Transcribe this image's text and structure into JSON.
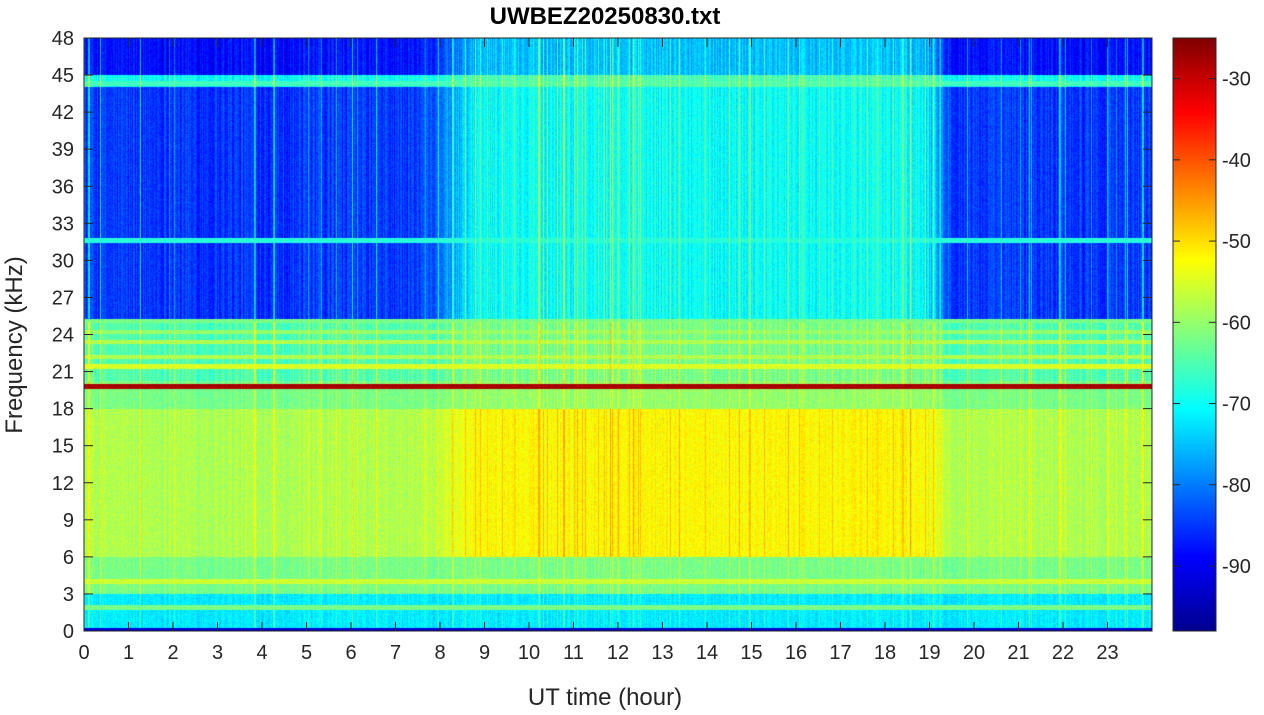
{
  "chart_data": {
    "type": "heatmap",
    "title": "UWBEZ20250830.txt",
    "xlabel": "UT time (hour)",
    "ylabel": "Frequency (kHz)",
    "xlim": [
      0,
      24
    ],
    "ylim": [
      0,
      48
    ],
    "x_ticks": [
      0,
      1,
      2,
      3,
      4,
      5,
      6,
      7,
      8,
      9,
      10,
      11,
      12,
      13,
      14,
      15,
      16,
      17,
      18,
      19,
      20,
      21,
      22,
      23
    ],
    "y_ticks": [
      0,
      3,
      6,
      9,
      12,
      15,
      18,
      21,
      24,
      27,
      30,
      33,
      36,
      39,
      42,
      45,
      48
    ],
    "colorbar": {
      "colormap": "jet",
      "range": [
        -98,
        -25
      ],
      "ticks": [
        -30,
        -40,
        -50,
        -60,
        -70,
        -80,
        -90
      ]
    },
    "approx_spectral_levels_db": {
      "bands_khz": [
        [
          0,
          3
        ],
        [
          3,
          6
        ],
        [
          6,
          18
        ],
        [
          18,
          19.5
        ],
        [
          19.5,
          20.2
        ],
        [
          20.2,
          25
        ],
        [
          25,
          44
        ],
        [
          44,
          45
        ],
        [
          45,
          48
        ]
      ],
      "quiet_hours_0_8_and_19_24": [
        -72,
        -62,
        -58,
        -62,
        -28,
        -65,
        -85,
        -70,
        -88
      ],
      "active_hours_8_19": [
        -72,
        -62,
        -52,
        -60,
        -28,
        -62,
        -70,
        -65,
        -75
      ]
    },
    "narrowband_lines_khz": [
      {
        "freq": 19.8,
        "level": -28
      },
      {
        "freq": 21.4,
        "level": -55
      },
      {
        "freq": 22.2,
        "level": -58
      },
      {
        "freq": 23.4,
        "level": -58
      },
      {
        "freq": 24.2,
        "level": -60
      },
      {
        "freq": 25.1,
        "level": -62
      },
      {
        "freq": 31.6,
        "level": -68
      },
      {
        "freq": 44.3,
        "level": -66
      },
      {
        "freq": 4.0,
        "level": -56
      },
      {
        "freq": 8.0,
        "level": -60
      },
      {
        "freq": 1.9,
        "level": -62
      }
    ]
  }
}
